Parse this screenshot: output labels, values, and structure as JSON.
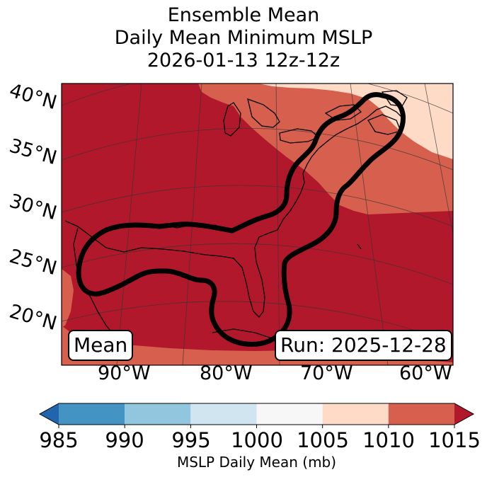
{
  "title_lines": [
    "Ensemble Mean",
    "Daily Mean Minimum MSLP",
    "2026-01-13 12z-12z"
  ],
  "chart_data": {
    "type": "heatmap",
    "title": "Ensemble Mean Daily Mean Minimum MSLP 2026-01-13 12z-12z",
    "lat_ticks": [
      "40°N",
      "35°N",
      "30°N",
      "25°N",
      "20°N"
    ],
    "lon_ticks": [
      "90°W",
      "80°W",
      "70°W",
      "60°W"
    ],
    "colorbar": {
      "label": "MSLP Daily Mean (mb)",
      "ticks": [
        "985",
        "990",
        "995",
        "1000",
        "1005",
        "1010",
        "1015"
      ],
      "bins": [
        {
          "range": [
            985,
            990
          ],
          "color": "#4393c3"
        },
        {
          "range": [
            990,
            995
          ],
          "color": "#92c5de"
        },
        {
          "range": [
            995,
            1000
          ],
          "color": "#d1e5f0"
        },
        {
          "range": [
            1000,
            1005
          ],
          "color": "#f7f7f7"
        },
        {
          "range": [
            1005,
            1010
          ],
          "color": "#fddbc7"
        },
        {
          "range": [
            1010,
            1015
          ],
          "color": "#d6604d"
        }
      ],
      "under_color": "#2166ac",
      "over_color": "#b2182b"
    },
    "contour": "ensemble mean daily minimum MSLP contour (black) from the Gulf of Mexico up the US East Coast to the Canadian Maritimes"
  },
  "box_left": "Mean",
  "box_right": "Run: 2025-12-28",
  "colors": {
    "over": "#b2182b",
    "mid": "#d6604d",
    "light": "#fddbc7"
  }
}
